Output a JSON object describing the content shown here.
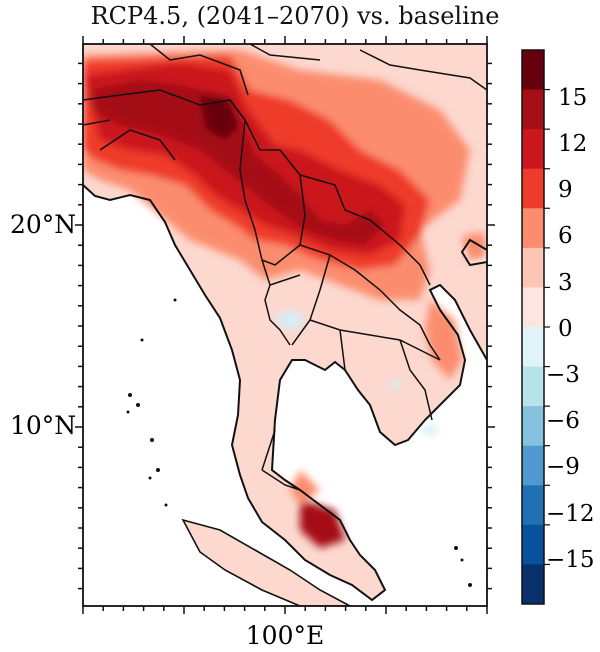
{
  "title": "RCP4.5, (2041–2070) vs. baseline",
  "axes": {
    "y_tick_labels": [
      "20°N",
      "10°N"
    ],
    "x_tick_labels": [
      "100°E"
    ]
  },
  "colorbar": {
    "labels": [
      "15",
      "12",
      "9",
      "6",
      "3",
      "0",
      "−3",
      "−6",
      "−9",
      "−12",
      "−15"
    ],
    "bin_colors": [
      "#67000d",
      "#a50f15",
      "#cb181d",
      "#ef3b2c",
      "#fb8d6e",
      "#fcc5b5",
      "#fde6e0",
      "#e0f3f8",
      "#b7e3ea",
      "#86c1dd",
      "#4f9bd0",
      "#2171b5",
      "#08519c",
      "#08306b"
    ]
  },
  "colors": {
    "ocean": "#ffffff",
    "land_light": "#fcd8cf",
    "border": "#111111"
  }
}
